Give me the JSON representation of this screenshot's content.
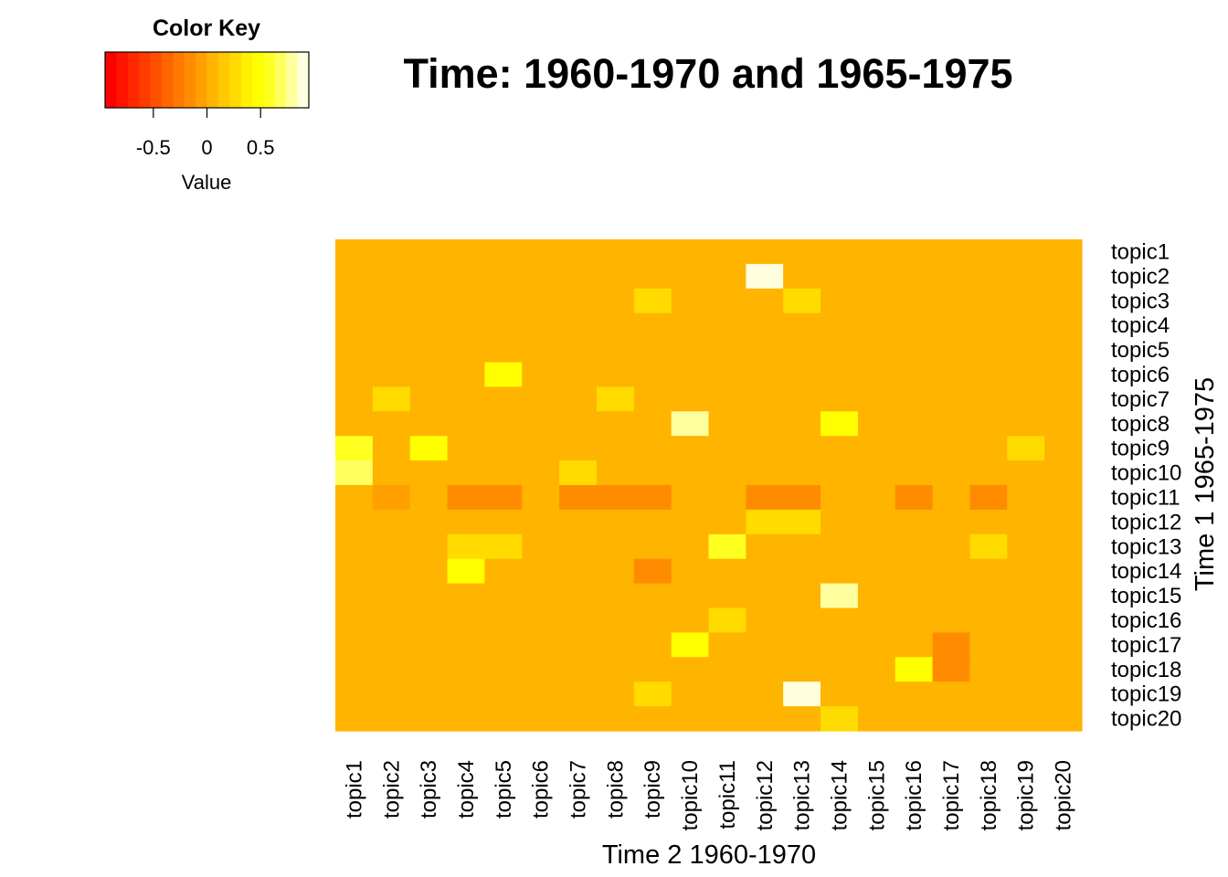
{
  "chart_data": {
    "type": "heatmap",
    "title": "Time: 1960-1970 and 1965-1975",
    "xlabel": "Time 2 1960-1970",
    "ylabel": "Time 1 1965-1975",
    "columns": [
      "topic1",
      "topic2",
      "topic3",
      "topic4",
      "topic5",
      "topic6",
      "topic7",
      "topic8",
      "topic9",
      "topic10",
      "topic11",
      "topic12",
      "topic13",
      "topic14",
      "topic15",
      "topic16",
      "topic17",
      "topic18",
      "topic19",
      "topic20"
    ],
    "rows": [
      "topic1",
      "topic2",
      "topic3",
      "topic4",
      "topic5",
      "topic6",
      "topic7",
      "topic8",
      "topic9",
      "topic10",
      "topic11",
      "topic12",
      "topic13",
      "topic14",
      "topic15",
      "topic16",
      "topic17",
      "topic18",
      "topic19",
      "topic20"
    ],
    "values": [
      [
        0,
        0,
        0,
        0,
        0,
        0,
        0,
        0,
        0,
        0,
        0,
        0,
        0.1,
        0.1,
        0,
        0,
        0,
        0,
        0,
        0
      ],
      [
        0,
        0,
        0,
        0,
        0,
        0,
        0,
        0,
        0,
        0,
        0,
        0.95,
        0,
        0,
        0,
        0,
        0,
        0,
        0,
        0
      ],
      [
        0,
        0,
        0,
        0,
        0,
        0,
        0,
        0,
        0.3,
        0,
        0,
        0,
        0.3,
        0,
        0,
        0,
        0,
        0,
        0,
        0
      ],
      [
        0,
        0,
        0,
        0,
        0,
        0,
        0.1,
        0,
        0.1,
        0,
        0,
        0,
        0.1,
        0,
        0.1,
        0,
        0,
        0,
        0,
        0
      ],
      [
        0,
        0,
        0,
        0,
        0,
        0,
        0,
        0,
        0,
        0,
        0,
        0,
        0,
        0,
        0,
        0,
        0,
        0,
        0,
        0
      ],
      [
        0,
        0,
        0,
        0,
        0.5,
        0,
        0,
        0,
        0,
        0,
        0,
        0,
        0,
        0,
        0,
        0,
        0,
        0,
        0.1,
        0
      ],
      [
        0.1,
        0.25,
        0,
        0,
        0,
        0,
        0,
        0.25,
        0,
        0.1,
        0,
        0,
        0,
        0,
        0,
        0,
        0,
        0,
        0,
        0
      ],
      [
        0,
        0,
        0,
        0,
        0,
        0,
        0,
        0,
        0,
        0.8,
        0,
        0,
        0,
        0.5,
        0,
        0,
        0,
        0,
        0,
        0
      ],
      [
        0.55,
        0,
        0.5,
        0,
        0.1,
        0,
        0,
        0,
        0,
        0,
        0,
        0,
        0,
        0,
        0,
        0,
        0,
        0,
        0.25,
        0
      ],
      [
        0.7,
        0,
        0,
        0,
        0,
        0,
        0.3,
        0,
        0,
        0,
        0,
        0,
        0,
        0,
        0,
        0.1,
        0,
        0,
        0.1,
        0
      ],
      [
        0,
        -0.1,
        0,
        -0.15,
        -0.15,
        0,
        -0.15,
        -0.15,
        -0.15,
        0,
        0,
        -0.15,
        -0.15,
        0,
        0,
        -0.15,
        0,
        -0.15,
        0,
        0
      ],
      [
        0,
        0,
        0,
        0,
        0,
        0,
        0,
        0,
        0,
        0,
        0,
        0.3,
        0.3,
        0,
        0,
        0,
        0,
        0,
        0,
        0
      ],
      [
        0,
        0,
        0,
        0.3,
        0.3,
        0,
        0,
        0,
        0,
        0.1,
        0.6,
        0,
        0,
        0,
        0,
        0,
        0,
        0.3,
        0,
        0
      ],
      [
        0,
        0,
        0,
        0.5,
        0,
        0,
        0,
        0,
        -0.15,
        0,
        0,
        0,
        0,
        0.1,
        0,
        0,
        0,
        0,
        0,
        0
      ],
      [
        0,
        0,
        0,
        0,
        0,
        0,
        0,
        0,
        0,
        0.1,
        0,
        0,
        0,
        0.8,
        0,
        0,
        0,
        0,
        0,
        0
      ],
      [
        0,
        0.1,
        0,
        0,
        0,
        0.1,
        0,
        0,
        0,
        0,
        0.3,
        0,
        0,
        0,
        0,
        0,
        0,
        0,
        0,
        0
      ],
      [
        0,
        0,
        0,
        0,
        0,
        0,
        0,
        0,
        0,
        0.5,
        0.1,
        0,
        0,
        0,
        0,
        0,
        -0.2,
        0,
        0,
        0
      ],
      [
        0.1,
        0,
        0,
        0,
        0,
        0,
        0,
        0,
        0,
        0,
        0,
        0,
        0,
        0,
        0,
        0.5,
        -0.2,
        0,
        0.1,
        0
      ],
      [
        0,
        0.1,
        0,
        0,
        0,
        0,
        0,
        0,
        0.3,
        0,
        0,
        0,
        0.85,
        0,
        0.1,
        0,
        0,
        0,
        0,
        0
      ],
      [
        0,
        0,
        0,
        0,
        0,
        0,
        0,
        0,
        0,
        0,
        0,
        0,
        0,
        0.3,
        0,
        0,
        0,
        0,
        0,
        0
      ]
    ],
    "color_key": {
      "title": "Color Key",
      "label": "Value",
      "ticks": [
        "-0.5",
        "0",
        "0.5"
      ],
      "range": [
        -0.95,
        0.95
      ],
      "colors": [
        "#FF0000",
        "#FF1400",
        "#FF2800",
        "#FF3C00",
        "#FF5000",
        "#FF6400",
        "#FF7800",
        "#FF8C00",
        "#FFA000",
        "#FFB400",
        "#FFC800",
        "#FFDB00",
        "#FFEF00",
        "#FFFF00",
        "#FFFF20",
        "#FFFF60",
        "#FFFF9F",
        "#FFFFDF"
      ]
    }
  }
}
